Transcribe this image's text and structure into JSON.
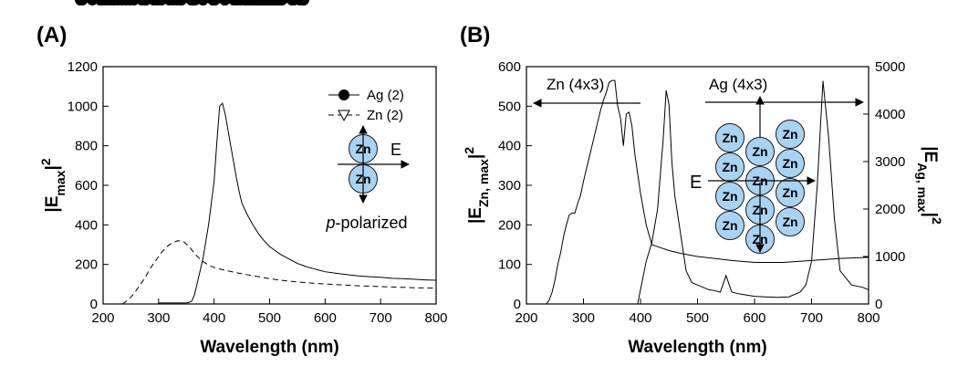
{
  "chart_data": [
    {
      "type": "line",
      "panel_label": "(A)",
      "x_label": "Wavelength (nm)",
      "y_label": [
        {
          "text": "|E"
        },
        {
          "text": "max",
          "shift": "sub"
        },
        {
          "text": "|"
        },
        {
          "text": "2",
          "shift": "super"
        }
      ],
      "xlim": [
        200,
        800
      ],
      "xticks": [
        200,
        300,
        400,
        500,
        600,
        700,
        800
      ],
      "ylim": [
        0,
        1200
      ],
      "yticks": [
        0,
        200,
        400,
        600,
        800,
        1000,
        1200
      ],
      "legend": "upper right",
      "series": [
        {
          "name": "Ag (2)",
          "color": "#000000",
          "marker": "circle",
          "marker_fill": "#000000",
          "dash": false,
          "x": [
            300,
            310,
            320,
            330,
            340,
            350,
            355,
            360,
            365,
            370,
            380,
            390,
            400,
            405,
            410,
            415,
            420,
            425,
            430,
            435,
            440,
            445,
            450,
            460,
            470,
            480,
            490,
            500,
            510,
            520,
            530,
            540,
            550,
            560,
            570,
            580,
            590,
            600,
            620,
            640,
            660,
            680,
            700,
            720,
            740,
            760,
            780,
            800
          ],
          "values": [
            5,
            5,
            5,
            5,
            5,
            5,
            8,
            15,
            50,
            110,
            230,
            400,
            620,
            820,
            1000,
            1015,
            960,
            880,
            800,
            720,
            640,
            570,
            510,
            450,
            400,
            355,
            320,
            290,
            270,
            250,
            235,
            220,
            205,
            195,
            185,
            178,
            170,
            163,
            155,
            148,
            142,
            138,
            135,
            130,
            128,
            125,
            122,
            120
          ]
        },
        {
          "name": "Zn (2)",
          "color": "#000000",
          "marker": "triangle-down",
          "marker_fill": "#ffffff",
          "dash": true,
          "x": [
            235,
            245,
            255,
            265,
            275,
            285,
            295,
            305,
            315,
            325,
            335,
            345,
            355,
            365,
            375,
            385,
            395,
            405,
            420,
            440,
            460,
            480,
            500,
            520,
            540,
            560,
            580,
            600,
            620,
            640,
            660,
            680,
            700,
            720,
            740,
            760,
            780,
            800
          ],
          "values": [
            0,
            20,
            50,
            90,
            130,
            180,
            220,
            260,
            290,
            310,
            320,
            315,
            290,
            255,
            225,
            205,
            190,
            180,
            170,
            158,
            148,
            138,
            128,
            120,
            114,
            109,
            105,
            101,
            98,
            95,
            92,
            90,
            88,
            86,
            84,
            82,
            81,
            80
          ]
        }
      ],
      "inset": {
        "particle_label": "Zn",
        "particle_color": "#a9d3f2",
        "field_label": "E",
        "polarization": [
          {
            "text": "p",
            "style": "italic"
          },
          {
            "text": "-polarized"
          }
        ]
      }
    },
    {
      "type": "line",
      "panel_label": "(B)",
      "x_label": "Wavelength (nm)",
      "y_label": [
        {
          "text": "|E"
        },
        {
          "text": "Zn, max",
          "shift": "sub"
        },
        {
          "text": "|"
        },
        {
          "text": "2",
          "shift": "super"
        }
      ],
      "y2_label": [
        {
          "text": "|E"
        },
        {
          "text": "Ag, max",
          "shift": "sub"
        },
        {
          "text": "|"
        },
        {
          "text": "2",
          "shift": "super"
        }
      ],
      "xlim": [
        200,
        800
      ],
      "xticks": [
        200,
        300,
        400,
        500,
        600,
        700,
        800
      ],
      "ylim": [
        0,
        600
      ],
      "yticks": [
        0,
        100,
        200,
        300,
        400,
        500,
        600
      ],
      "y2lim": [
        0,
        5000
      ],
      "y2ticks": [
        0,
        1000,
        2000,
        3000,
        4000,
        5000
      ],
      "legend": "arrows",
      "series": [
        {
          "name": "Zn (4x3)",
          "color": "#000000",
          "marker": "circle",
          "marker_fill": "#000000",
          "dash": false,
          "axis": "y",
          "x": [
            235,
            240,
            245,
            250,
            255,
            260,
            265,
            270,
            275,
            280,
            285,
            290,
            295,
            300,
            305,
            310,
            315,
            320,
            325,
            330,
            335,
            340,
            345,
            350,
            355,
            360,
            365,
            370,
            375,
            380,
            385,
            390,
            395,
            400,
            410,
            420,
            430,
            450,
            470,
            500,
            530,
            560,
            600,
            650,
            700,
            750,
            800
          ],
          "values": [
            0,
            10,
            30,
            60,
            100,
            130,
            170,
            200,
            225,
            230,
            230,
            255,
            275,
            310,
            340,
            370,
            400,
            430,
            460,
            490,
            515,
            535,
            560,
            565,
            565,
            500,
            470,
            400,
            480,
            485,
            450,
            380,
            330,
            280,
            200,
            150,
            145,
            135,
            128,
            120,
            115,
            110,
            105,
            105,
            110,
            115,
            118
          ]
        },
        {
          "name": "Ag (4x3)",
          "color": "#000000",
          "marker": "triangle-down",
          "marker_fill": "#ffffff",
          "dash": false,
          "axis": "y2",
          "x": [
            300,
            305,
            310,
            315,
            320,
            325,
            330,
            335,
            340,
            345,
            350,
            355,
            360,
            365,
            370,
            375,
            380,
            385,
            390,
            395,
            400,
            405,
            410,
            420,
            430,
            440,
            445,
            450,
            455,
            460,
            470,
            480,
            490,
            500,
            510,
            520,
            530,
            540,
            550,
            560,
            570,
            580,
            590,
            600,
            620,
            640,
            660,
            680,
            690,
            700,
            710,
            720,
            730,
            740,
            750,
            770,
            790,
            800
          ],
          "values": [
            0,
            0,
            0,
            0,
            0,
            0,
            0,
            0,
            0,
            0,
            0,
            0,
            0,
            0,
            0,
            0,
            0,
            0,
            0,
            0,
            300,
            600,
            900,
            1300,
            2000,
            3500,
            4500,
            4200,
            3000,
            2300,
            1500,
            700,
            450,
            400,
            350,
            300,
            280,
            250,
            600,
            250,
            220,
            200,
            180,
            160,
            150,
            140,
            150,
            250,
            400,
            900,
            2500,
            4700,
            3500,
            1800,
            700,
            400,
            350,
            300
          ]
        }
      ],
      "inset": {
        "particle_label": "Zn",
        "particle_color": "#a9d3f2",
        "field_label": "E"
      }
    }
  ]
}
